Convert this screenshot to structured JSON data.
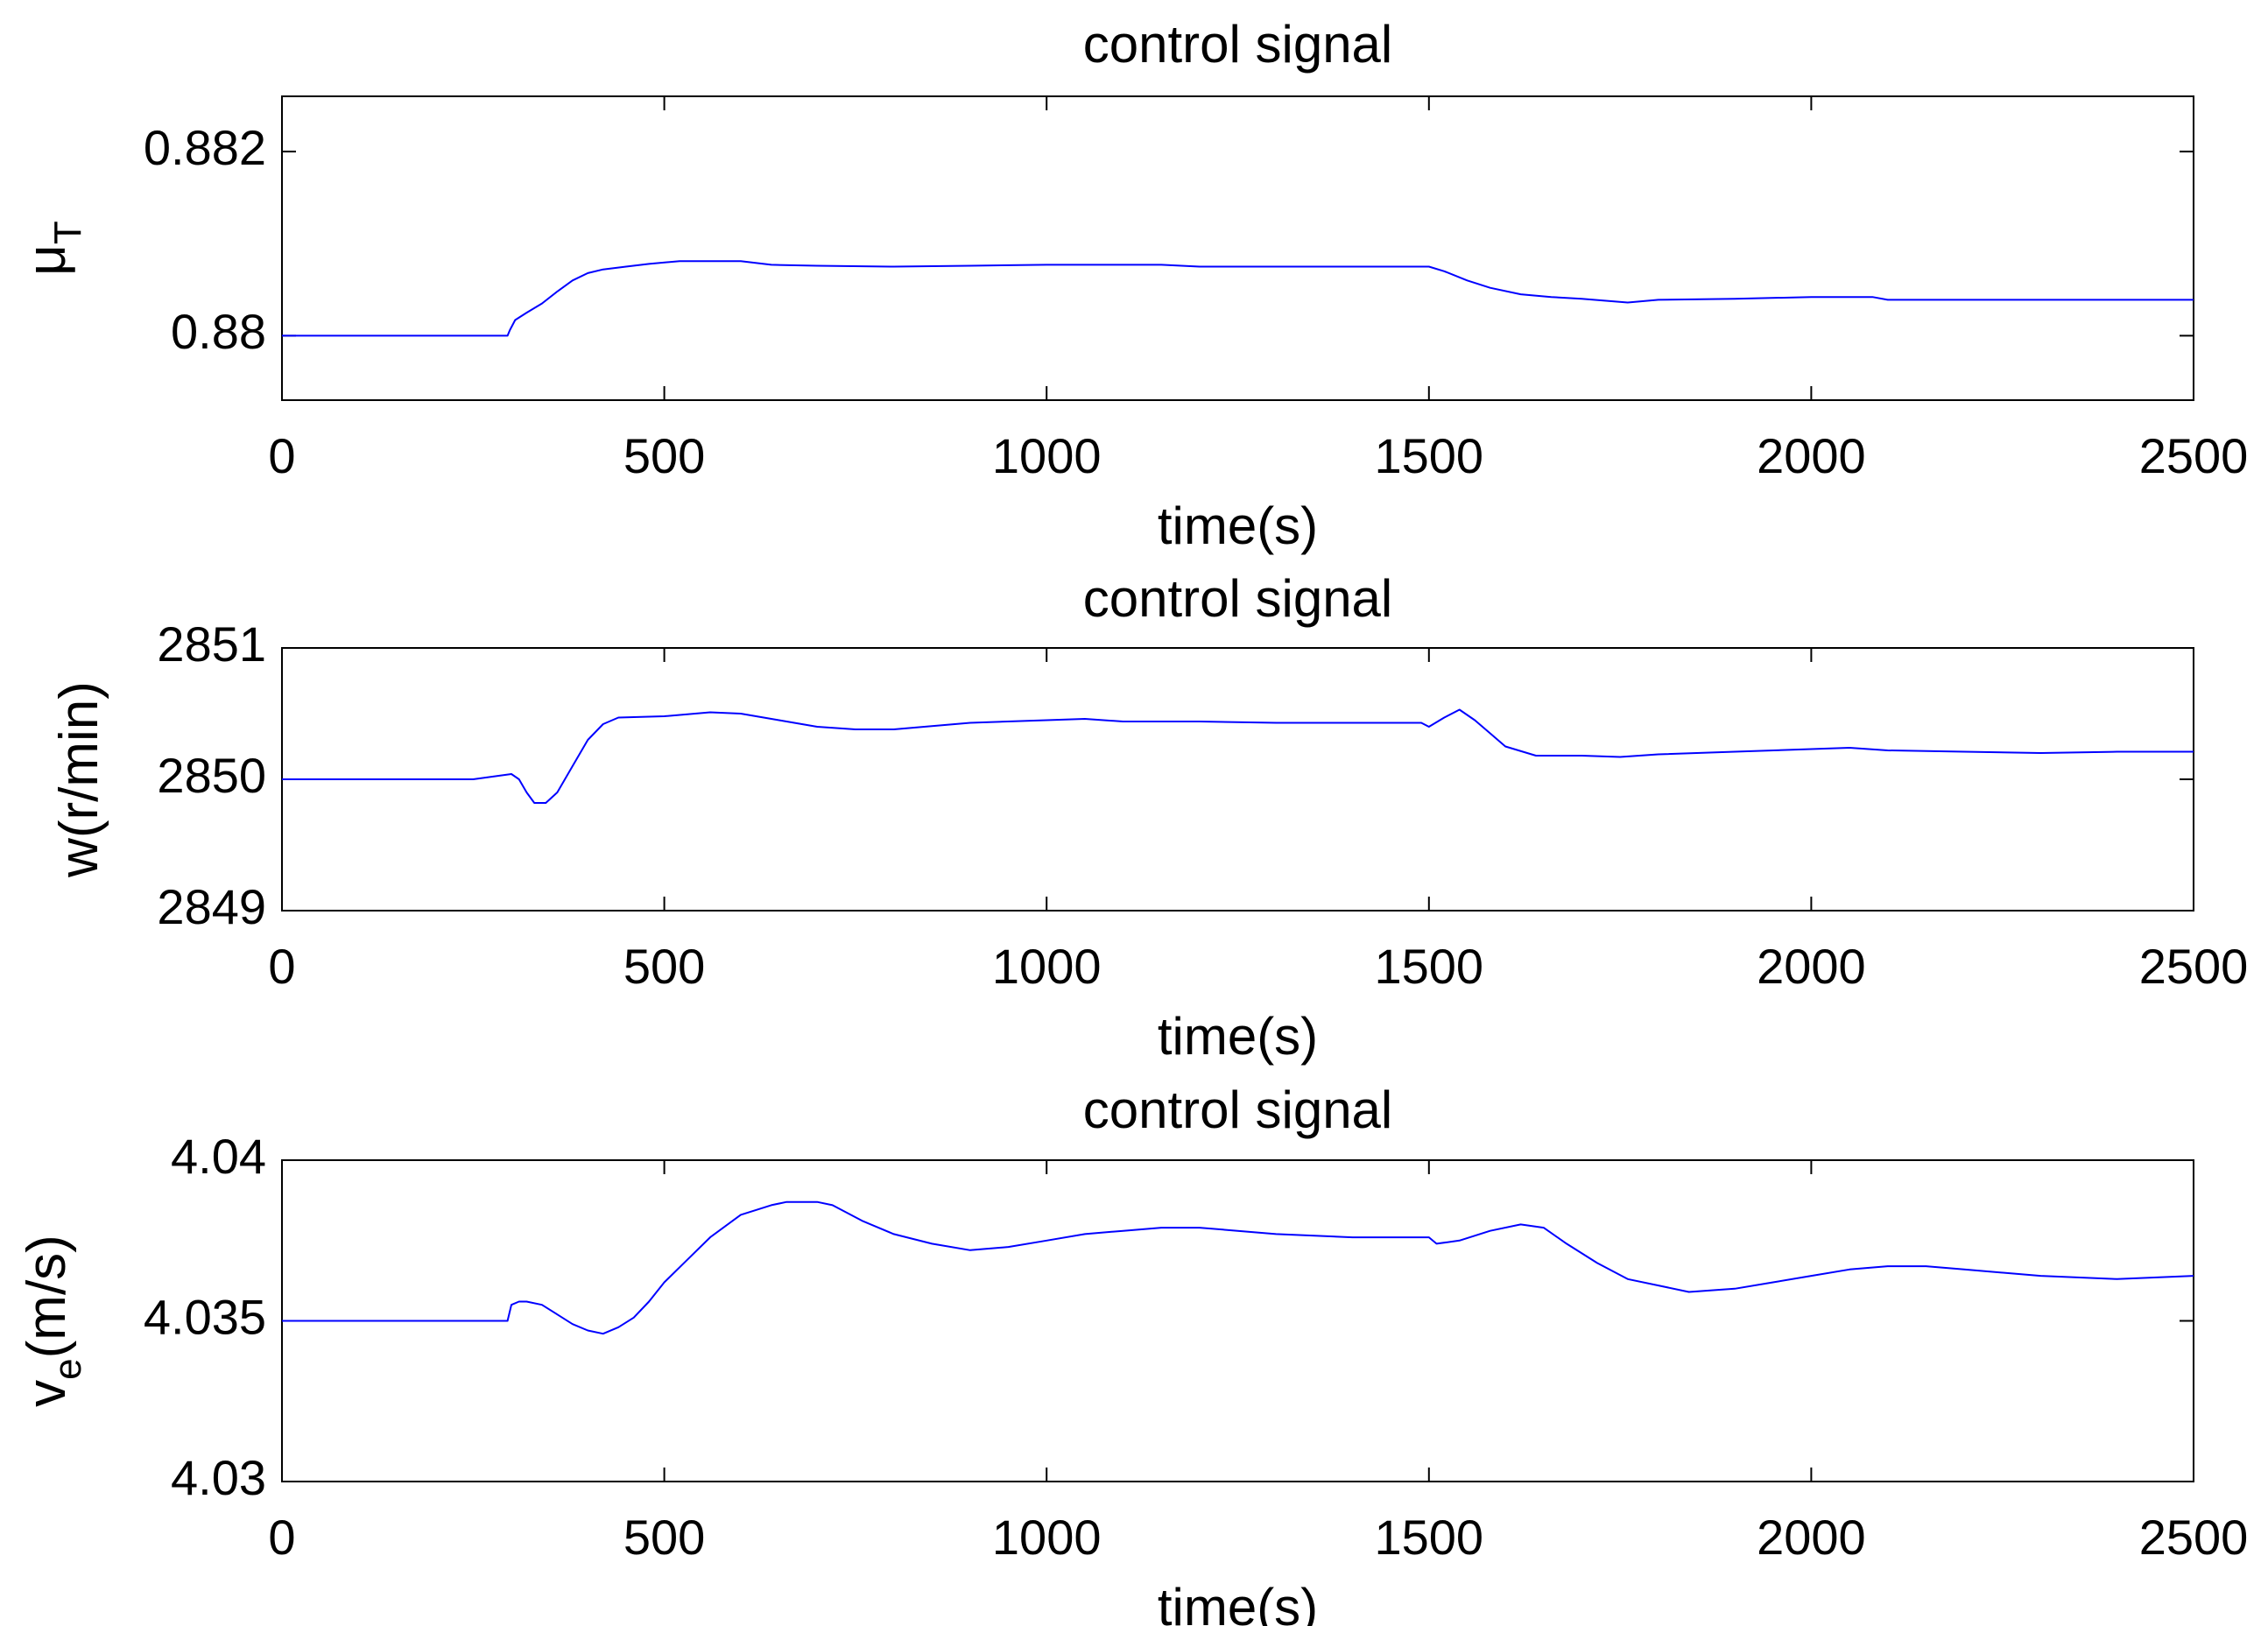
{
  "chart_data": [
    {
      "type": "line",
      "title": "control signal",
      "xlabel": "time(s)",
      "ylabel": {
        "main": "μ",
        "sub": "T",
        "suffix": ""
      },
      "xlim": [
        0,
        2500
      ],
      "ylim": [
        0.8793,
        0.8826
      ],
      "xticks": [
        0,
        500,
        1000,
        1500,
        2000,
        2500
      ],
      "yticks": [
        0.88,
        0.882
      ],
      "ytick_labels": [
        "0.88",
        "0.882"
      ],
      "grid": false,
      "line_color": "#0000ff",
      "series": [
        {
          "x": [
            0,
            295,
            298,
            305,
            320,
            340,
            360,
            380,
            400,
            420,
            450,
            480,
            520,
            600,
            640,
            700,
            800,
            900,
            1000,
            1100,
            1150,
            1200,
            1300,
            1400,
            1500,
            1520,
            1550,
            1580,
            1620,
            1660,
            1700,
            1760,
            1800,
            1900,
            2000,
            2080,
            2100,
            2200,
            2300,
            2400,
            2500
          ],
          "y": [
            0.88,
            0.88,
            0.88006,
            0.88017,
            0.88025,
            0.88035,
            0.88048,
            0.8806,
            0.88068,
            0.88072,
            0.88075,
            0.88078,
            0.88081,
            0.88081,
            0.88077,
            0.88076,
            0.88075,
            0.88076,
            0.88077,
            0.88077,
            0.88077,
            0.88075,
            0.88075,
            0.88075,
            0.88075,
            0.8807,
            0.8806,
            0.88052,
            0.88045,
            0.88042,
            0.8804,
            0.88036,
            0.88039,
            0.8804,
            0.88042,
            0.88042,
            0.88039,
            0.88039,
            0.88039,
            0.88039,
            0.88039
          ]
        }
      ]
    },
    {
      "type": "line",
      "title": "control signal",
      "xlabel": "time(s)",
      "ylabel": {
        "main": "w(r/min)",
        "sub": "",
        "suffix": ""
      },
      "xlim": [
        0,
        2500
      ],
      "ylim": [
        2849,
        2851
      ],
      "xticks": [
        0,
        500,
        1000,
        1500,
        2000,
        2500
      ],
      "yticks": [
        2849,
        2850,
        2851
      ],
      "ytick_labels": [
        "2849",
        "2850",
        "2851"
      ],
      "grid": false,
      "line_color": "#0000ff",
      "series": [
        {
          "x": [
            0,
            250,
            300,
            310,
            320,
            330,
            345,
            360,
            380,
            400,
            420,
            440,
            500,
            560,
            600,
            650,
            700,
            750,
            800,
            900,
            1000,
            1050,
            1100,
            1200,
            1300,
            1400,
            1490,
            1500,
            1520,
            1540,
            1560,
            1580,
            1600,
            1640,
            1700,
            1750,
            1800,
            1900,
            2000,
            2050,
            2100,
            2200,
            2300,
            2400,
            2500
          ],
          "y": [
            2850,
            2850,
            2850.04,
            2850,
            2849.9,
            2849.82,
            2849.82,
            2849.9,
            2850.1,
            2850.3,
            2850.42,
            2850.47,
            2850.48,
            2850.51,
            2850.5,
            2850.45,
            2850.4,
            2850.38,
            2850.38,
            2850.43,
            2850.45,
            2850.46,
            2850.44,
            2850.44,
            2850.43,
            2850.43,
            2850.43,
            2850.4,
            2850.47,
            2850.53,
            2850.45,
            2850.35,
            2850.25,
            2850.18,
            2850.18,
            2850.17,
            2850.19,
            2850.21,
            2850.23,
            2850.24,
            2850.22,
            2850.21,
            2850.2,
            2850.21,
            2850.21
          ]
        }
      ]
    },
    {
      "type": "line",
      "title": "control signal",
      "xlabel": "time(s)",
      "ylabel": {
        "main": "v",
        "sub": "e",
        "suffix": "(m/s)"
      },
      "xlim": [
        0,
        2500
      ],
      "ylim": [
        4.03,
        4.04
      ],
      "xticks": [
        0,
        500,
        1000,
        1500,
        2000,
        2500
      ],
      "yticks": [
        4.03,
        4.035,
        4.04
      ],
      "ytick_labels": [
        "4.03",
        "4.035",
        "4.04"
      ],
      "grid": false,
      "line_color": "#0000ff",
      "series": [
        {
          "x": [
            0,
            295,
            300,
            310,
            320,
            340,
            360,
            380,
            400,
            420,
            440,
            460,
            480,
            500,
            530,
            560,
            600,
            640,
            660,
            700,
            720,
            760,
            800,
            850,
            900,
            950,
            1000,
            1050,
            1100,
            1150,
            1200,
            1250,
            1300,
            1400,
            1500,
            1510,
            1540,
            1580,
            1620,
            1650,
            1680,
            1720,
            1760,
            1800,
            1840,
            1900,
            1950,
            2000,
            2050,
            2100,
            2150,
            2200,
            2300,
            2400,
            2500
          ],
          "y": [
            4.035,
            4.035,
            4.0355,
            4.0356,
            4.0356,
            4.0355,
            4.0352,
            4.0349,
            4.0347,
            4.0346,
            4.0348,
            4.0351,
            4.0356,
            4.0362,
            4.0369,
            4.0376,
            4.0383,
            4.0386,
            4.0387,
            4.0387,
            4.0386,
            4.0381,
            4.0377,
            4.0374,
            4.0372,
            4.0373,
            4.0375,
            4.0377,
            4.0378,
            4.0379,
            4.0379,
            4.0378,
            4.0377,
            4.0376,
            4.0376,
            4.0374,
            4.0375,
            4.0378,
            4.038,
            4.0379,
            4.0374,
            4.0368,
            4.0363,
            4.0361,
            4.0359,
            4.036,
            4.0362,
            4.0364,
            4.0366,
            4.0367,
            4.0367,
            4.0366,
            4.0364,
            4.0363,
            4.0364
          ]
        }
      ]
    }
  ]
}
